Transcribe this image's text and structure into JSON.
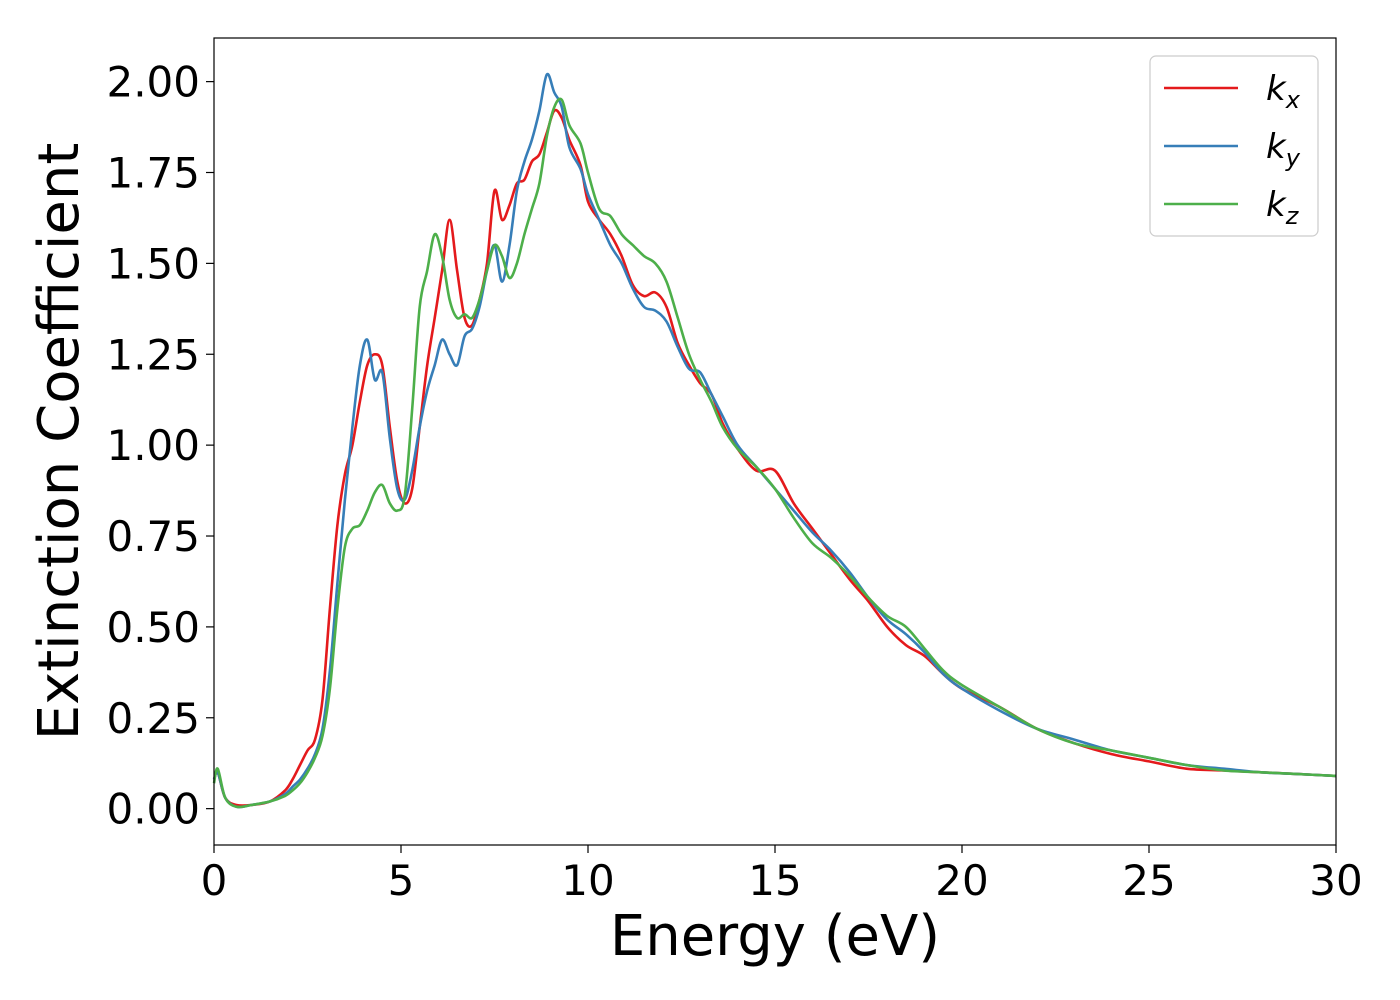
{
  "chart_data": {
    "type": "line",
    "xlabel": "Energy (eV)",
    "ylabel": "Extinction Coefficient",
    "xlim": [
      0,
      30
    ],
    "ylim": [
      -0.1,
      2.12
    ],
    "xticks": [
      0,
      5,
      10,
      15,
      20,
      25,
      30
    ],
    "xtick_labels": [
      "0",
      "5",
      "10",
      "15",
      "20",
      "25",
      "30"
    ],
    "yticks": [
      0,
      0.25,
      0.5,
      0.75,
      1.0,
      1.25,
      1.5,
      1.75,
      2.0
    ],
    "ytick_labels": [
      "0.00",
      "0.25",
      "0.50",
      "0.75",
      "1.00",
      "1.25",
      "1.50",
      "1.75",
      "2.00"
    ],
    "grid": false,
    "legend_position": "top-right",
    "series": [
      {
        "name": "k",
        "subscript": "x",
        "color": "#e41a1c",
        "x": [
          0,
          0.1,
          0.3,
          0.6,
          1.0,
          1.5,
          1.9,
          2.1,
          2.3,
          2.5,
          2.7,
          2.9,
          3.1,
          3.3,
          3.5,
          3.7,
          3.9,
          4.1,
          4.3,
          4.5,
          4.7,
          4.9,
          5.1,
          5.3,
          5.5,
          5.7,
          5.9,
          6.1,
          6.3,
          6.5,
          6.7,
          6.9,
          7.1,
          7.3,
          7.5,
          7.7,
          7.9,
          8.1,
          8.3,
          8.5,
          8.7,
          8.9,
          9.1,
          9.3,
          9.5,
          9.8,
          10.0,
          10.3,
          10.6,
          10.9,
          11.2,
          11.5,
          11.8,
          12.1,
          12.4,
          12.7,
          13.0,
          13.3,
          13.6,
          14.0,
          14.5,
          15.0,
          15.5,
          16.0,
          16.5,
          17.0,
          17.5,
          18.0,
          18.5,
          19.0,
          19.5,
          20.0,
          21.0,
          22.0,
          23.0,
          24.0,
          25.0,
          26.0,
          27.0,
          28.0,
          29.0,
          30.0
        ],
        "values": [
          0.08,
          0.1,
          0.03,
          0.01,
          0.01,
          0.02,
          0.05,
          0.08,
          0.12,
          0.16,
          0.19,
          0.3,
          0.55,
          0.78,
          0.92,
          1.0,
          1.12,
          1.22,
          1.25,
          1.22,
          1.05,
          0.9,
          0.84,
          0.88,
          1.05,
          1.22,
          1.35,
          1.48,
          1.62,
          1.48,
          1.35,
          1.33,
          1.4,
          1.5,
          1.7,
          1.62,
          1.66,
          1.72,
          1.73,
          1.78,
          1.8,
          1.86,
          1.92,
          1.9,
          1.84,
          1.77,
          1.67,
          1.62,
          1.58,
          1.52,
          1.44,
          1.41,
          1.42,
          1.38,
          1.28,
          1.22,
          1.17,
          1.14,
          1.06,
          0.99,
          0.93,
          0.93,
          0.84,
          0.77,
          0.7,
          0.63,
          0.57,
          0.5,
          0.45,
          0.42,
          0.37,
          0.33,
          0.28,
          0.22,
          0.18,
          0.15,
          0.13,
          0.11,
          0.105,
          0.1,
          0.095,
          0.09
        ]
      },
      {
        "name": "k",
        "subscript": "y",
        "color": "#377eb8",
        "x": [
          0,
          0.1,
          0.3,
          0.6,
          1.0,
          1.5,
          1.9,
          2.1,
          2.3,
          2.5,
          2.7,
          2.9,
          3.1,
          3.3,
          3.5,
          3.7,
          3.9,
          4.1,
          4.3,
          4.5,
          4.7,
          4.9,
          5.1,
          5.3,
          5.5,
          5.7,
          5.9,
          6.1,
          6.3,
          6.5,
          6.7,
          6.9,
          7.1,
          7.3,
          7.5,
          7.7,
          7.9,
          8.1,
          8.3,
          8.5,
          8.7,
          8.9,
          9.1,
          9.3,
          9.5,
          9.8,
          10.0,
          10.3,
          10.6,
          10.9,
          11.2,
          11.5,
          11.8,
          12.1,
          12.4,
          12.7,
          13.0,
          13.3,
          13.6,
          14.0,
          14.5,
          15.0,
          15.5,
          16.0,
          16.5,
          17.0,
          17.5,
          18.0,
          18.5,
          19.0,
          19.5,
          20.0,
          21.0,
          22.0,
          23.0,
          24.0,
          25.0,
          26.0,
          27.0,
          28.0,
          29.0,
          30.0
        ],
        "values": [
          0.08,
          0.1,
          0.03,
          0.005,
          0.01,
          0.02,
          0.04,
          0.06,
          0.08,
          0.11,
          0.15,
          0.22,
          0.38,
          0.62,
          0.85,
          1.05,
          1.22,
          1.29,
          1.18,
          1.2,
          1.02,
          0.88,
          0.85,
          0.93,
          1.05,
          1.15,
          1.22,
          1.29,
          1.25,
          1.22,
          1.3,
          1.32,
          1.38,
          1.48,
          1.55,
          1.45,
          1.55,
          1.7,
          1.78,
          1.84,
          1.92,
          2.02,
          1.97,
          1.93,
          1.82,
          1.76,
          1.69,
          1.62,
          1.55,
          1.5,
          1.43,
          1.38,
          1.37,
          1.34,
          1.27,
          1.21,
          1.2,
          1.14,
          1.08,
          1.0,
          0.94,
          0.88,
          0.82,
          0.76,
          0.71,
          0.65,
          0.58,
          0.52,
          0.48,
          0.43,
          0.37,
          0.33,
          0.27,
          0.22,
          0.19,
          0.16,
          0.14,
          0.12,
          0.11,
          0.1,
          0.095,
          0.09
        ]
      },
      {
        "name": "k",
        "subscript": "z",
        "color": "#4daf4a",
        "x": [
          0,
          0.1,
          0.3,
          0.6,
          1.0,
          1.5,
          1.9,
          2.1,
          2.3,
          2.5,
          2.7,
          2.9,
          3.1,
          3.3,
          3.5,
          3.7,
          3.9,
          4.1,
          4.3,
          4.5,
          4.7,
          4.9,
          5.1,
          5.3,
          5.5,
          5.7,
          5.9,
          6.1,
          6.3,
          6.5,
          6.7,
          6.9,
          7.1,
          7.3,
          7.5,
          7.7,
          7.9,
          8.1,
          8.3,
          8.5,
          8.7,
          8.9,
          9.1,
          9.3,
          9.5,
          9.8,
          10.0,
          10.3,
          10.6,
          10.9,
          11.2,
          11.5,
          11.8,
          12.1,
          12.4,
          12.7,
          13.0,
          13.3,
          13.6,
          14.0,
          14.5,
          15.0,
          15.5,
          16.0,
          16.5,
          17.0,
          17.5,
          18.0,
          18.5,
          19.0,
          19.5,
          20.0,
          21.0,
          22.0,
          23.0,
          24.0,
          25.0,
          26.0,
          27.0,
          28.0,
          29.0,
          30.0
        ],
        "values": [
          0.07,
          0.11,
          0.03,
          0.005,
          0.01,
          0.02,
          0.035,
          0.05,
          0.07,
          0.1,
          0.14,
          0.2,
          0.33,
          0.55,
          0.72,
          0.77,
          0.78,
          0.82,
          0.87,
          0.89,
          0.84,
          0.82,
          0.86,
          1.1,
          1.38,
          1.48,
          1.58,
          1.52,
          1.4,
          1.35,
          1.36,
          1.35,
          1.4,
          1.48,
          1.55,
          1.52,
          1.46,
          1.5,
          1.58,
          1.65,
          1.72,
          1.85,
          1.93,
          1.95,
          1.88,
          1.83,
          1.75,
          1.65,
          1.63,
          1.58,
          1.55,
          1.52,
          1.5,
          1.45,
          1.35,
          1.25,
          1.18,
          1.12,
          1.05,
          0.99,
          0.94,
          0.88,
          0.8,
          0.73,
          0.69,
          0.64,
          0.58,
          0.53,
          0.5,
          0.44,
          0.38,
          0.34,
          0.28,
          0.22,
          0.18,
          0.16,
          0.14,
          0.12,
          0.105,
          0.1,
          0.095,
          0.09
        ]
      }
    ]
  }
}
